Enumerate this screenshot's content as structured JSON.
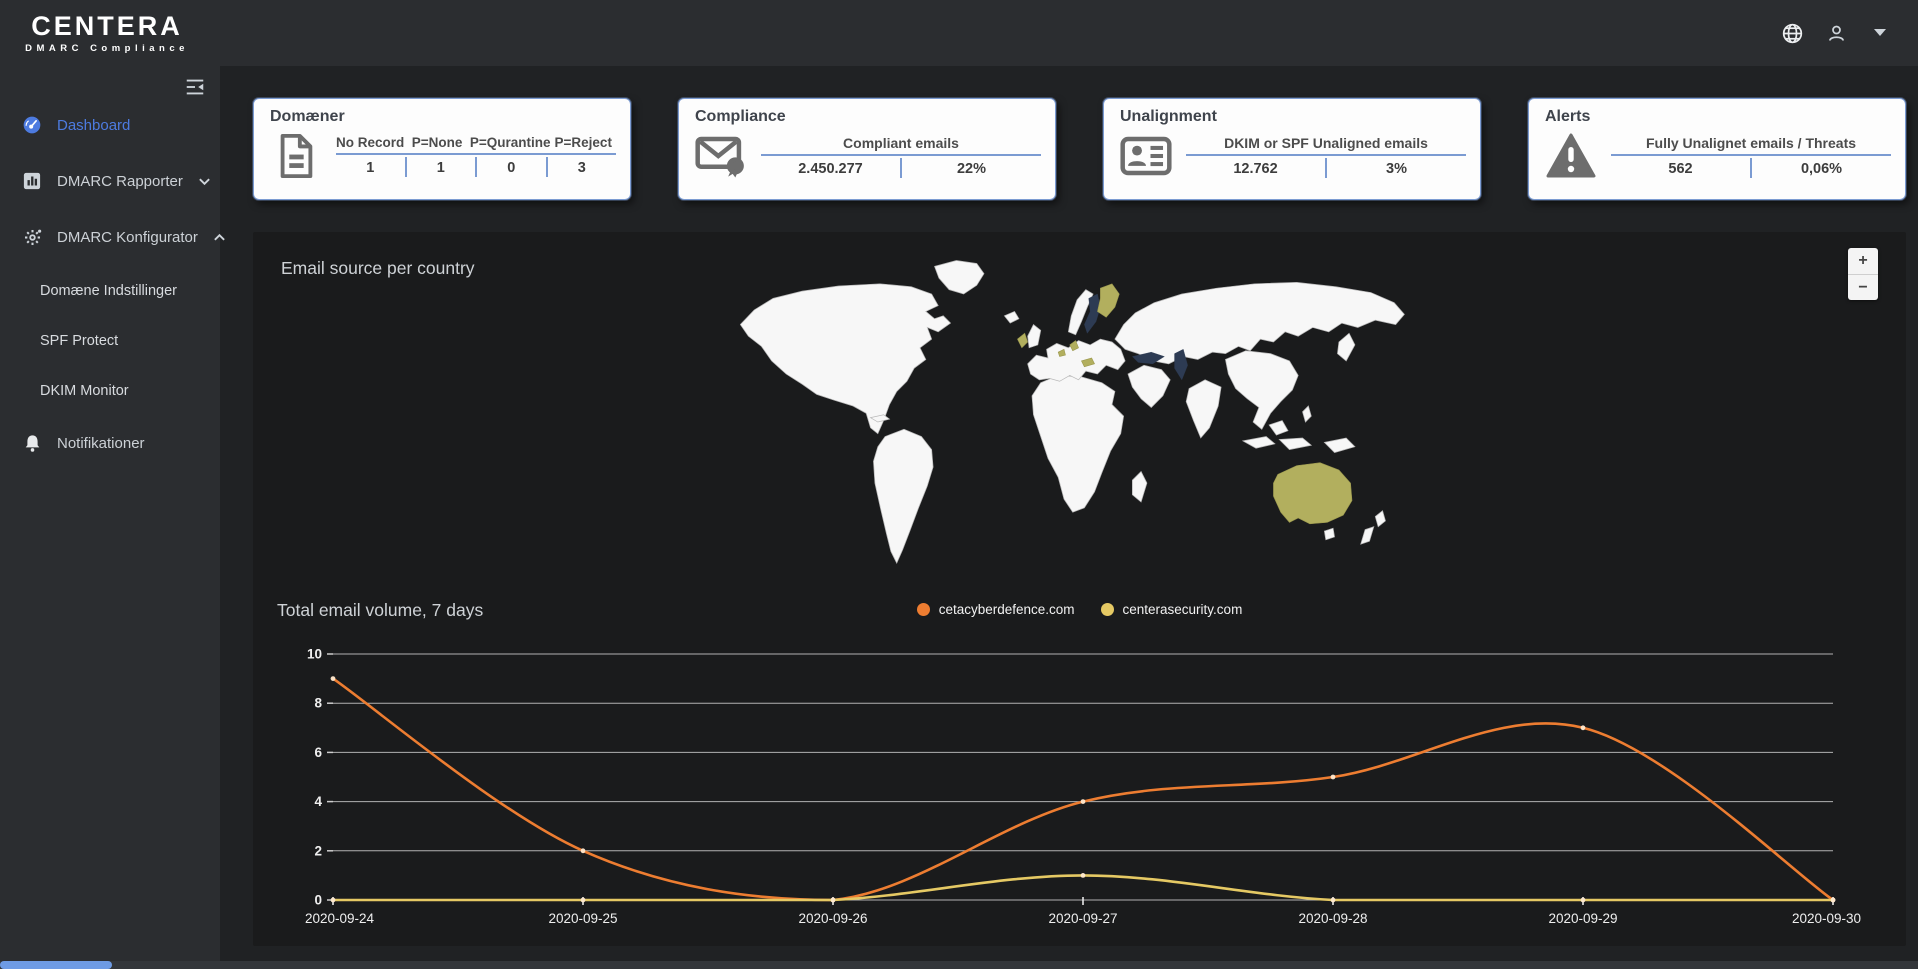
{
  "theme": {
    "topbar_bg": "#2b2d30",
    "content_bg": "#202224",
    "panel_bg": "#1a1b1c",
    "accent_blue": "#4d7be0",
    "card_border": "#7b9bd2",
    "map_land": "#f7f7f7",
    "map_highlight": "#b2af5e",
    "map_sea": "#2d3b53",
    "series_orange": "#ed7d31",
    "series_yellow": "#e5c964"
  },
  "brand": {
    "name": "CENTERA",
    "subtitle": "DMARC Compliance"
  },
  "topbar": {
    "icons": [
      "globe-icon",
      "user-icon",
      "caret-down-icon"
    ]
  },
  "sidebar": {
    "menu_icon": "menu-fold-icon",
    "items": [
      {
        "id": "dashboard",
        "label": "Dashboard",
        "icon": "dashboard-icon",
        "active": true
      },
      {
        "id": "dmarc-rapporter",
        "label": "DMARC Rapporter",
        "icon": "bar-chart-icon",
        "chevron": "down"
      },
      {
        "id": "dmarc-konfigurator",
        "label": "DMARC Konfigurator",
        "icon": "gear-icon",
        "chevron": "up",
        "children": [
          {
            "id": "domaene-indstillinger",
            "label": "Domæne Indstillinger"
          },
          {
            "id": "spf-protect",
            "label": "SPF Protect"
          },
          {
            "id": "dkim-monitor",
            "label": "DKIM Monitor"
          }
        ]
      },
      {
        "id": "notifikationer",
        "label": "Notifikationer",
        "icon": "bell-icon"
      }
    ]
  },
  "cards": [
    {
      "id": "domaener",
      "title": "Domæner",
      "icon": "document-icon",
      "columns": [
        {
          "header": "No Record",
          "value": "1"
        },
        {
          "header": "P=None",
          "value": "1"
        },
        {
          "header": "P=Qurantine",
          "value": "0"
        },
        {
          "header": "P=Reject",
          "value": "3"
        }
      ]
    },
    {
      "id": "compliance",
      "title": "Compliance",
      "icon": "certified-mail-icon",
      "header": "Compliant emails",
      "values": [
        "2.450.277",
        "22%"
      ]
    },
    {
      "id": "unalignment",
      "title": "Unalignment",
      "icon": "id-card-icon",
      "header": "DKIM or SPF Unaligned emails",
      "values": [
        "12.762",
        "3%"
      ]
    },
    {
      "id": "alerts",
      "title": "Alerts",
      "icon": "warning-icon",
      "header": "Fully Unalignet emails / Threats",
      "values": [
        "562",
        "0,06%"
      ]
    }
  ],
  "map": {
    "title": "Email source per country",
    "zoom_in_label": "+",
    "zoom_out_label": "−",
    "highlighted_countries": [
      "Australia",
      "Finland",
      "Ireland",
      "Netherlands",
      "Denmark",
      "Austria"
    ],
    "shaded_countries": [
      "Sweden"
    ]
  },
  "chart_data": {
    "type": "line",
    "title": "Total email volume, 7 days",
    "x": [
      "2020-09-24",
      "2020-09-25",
      "2020-09-26",
      "2020-09-27",
      "2020-09-28",
      "2020-09-29",
      "2020-09-30"
    ],
    "series": [
      {
        "name": "cetacyberdefence.com",
        "color": "#ed7d31",
        "values": [
          9,
          2,
          0,
          4,
          5,
          7,
          0
        ]
      },
      {
        "name": "centerasecurity.com",
        "color": "#e5c964",
        "values": [
          0,
          0,
          0,
          1,
          0,
          0,
          0
        ]
      }
    ],
    "xlabel": "",
    "ylabel": "",
    "ylim": [
      0,
      10
    ],
    "yticks": [
      0,
      2,
      4,
      6,
      8,
      10
    ],
    "grid": true,
    "legend_position": "top-center"
  }
}
